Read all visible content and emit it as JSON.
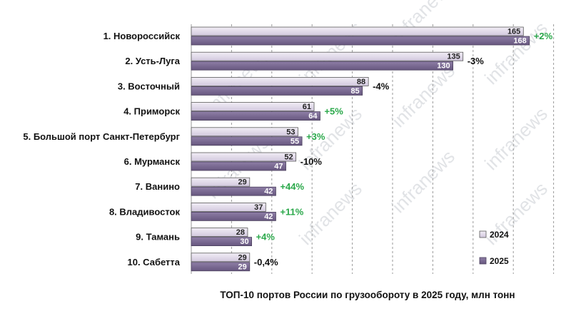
{
  "chart_data": {
    "type": "bar",
    "orientation": "horizontal",
    "title": "ТОП-10 портов России по грузообороту в 2025 году, млн тонн",
    "categories": [
      "1. Новороссийск",
      "2. Усть-Луга",
      "3. Восточный",
      "4. Приморск",
      "5. Большой порт Санкт-Петербург",
      "6. Мурманск",
      "7. Ванино",
      "8. Владивосток",
      "9. Тамань",
      "10. Сабетта"
    ],
    "series": [
      {
        "name": "2024",
        "values": [
          165,
          135,
          88,
          61,
          53,
          52,
          29,
          37,
          28,
          29
        ],
        "color": "#ddd6e6"
      },
      {
        "name": "2025",
        "values": [
          168,
          130,
          85,
          64,
          55,
          47,
          42,
          42,
          30,
          29
        ],
        "color": "#7b6a93"
      }
    ],
    "changes": [
      "+2%",
      "-3%",
      "-4%",
      "+5%",
      "+3%",
      "-10%",
      "+44%",
      "+11%",
      "+4%",
      "-0,4%"
    ],
    "change_colors": {
      "positive": "#2aa84a",
      "negative": "#111111"
    },
    "xlim": [
      0,
      180
    ],
    "grid": true,
    "legend_position": "bottom-right",
    "watermark": "infranews"
  }
}
